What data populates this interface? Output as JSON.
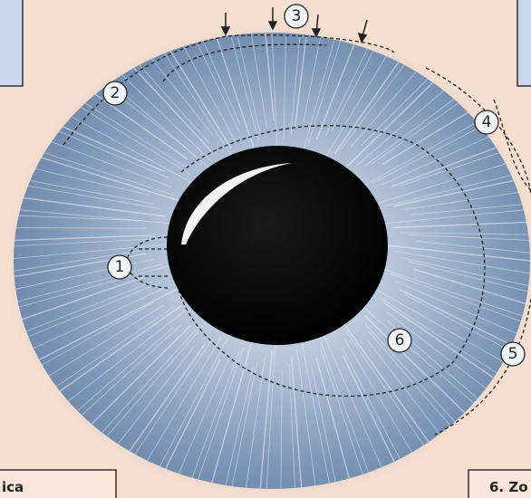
{
  "markers": [
    "1",
    "2",
    "3",
    "4",
    "5",
    "6"
  ],
  "captions": {
    "bottom_left": "ica",
    "bottom_right": "6. Zo"
  }
}
